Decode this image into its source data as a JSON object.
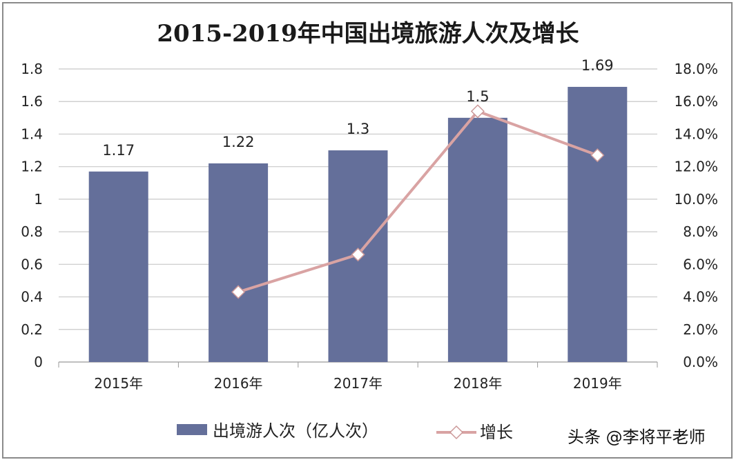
{
  "chart_data": {
    "type": "bar+line",
    "title": "2015-2019年中国出境旅游人次及增长",
    "categories": [
      "2015年",
      "2016年",
      "2017年",
      "2018年",
      "2019年"
    ],
    "series": [
      {
        "name": "出境游人次（亿人次）",
        "type": "bar",
        "axis": "left",
        "values": [
          1.17,
          1.22,
          1.3,
          1.5,
          1.69
        ],
        "data_labels": [
          "1.17",
          "1.22",
          "1.3",
          "1.5",
          "1.69"
        ],
        "color": "#646f9a"
      },
      {
        "name": "增长",
        "type": "line",
        "axis": "right",
        "values": [
          null,
          4.3,
          6.6,
          15.4,
          12.7
        ],
        "color": "#d9a3a3"
      }
    ],
    "left_axis": {
      "ylim": [
        0,
        1.8
      ],
      "ticks": [
        "0",
        "0.2",
        "0.4",
        "0.6",
        "0.8",
        "1",
        "1.2",
        "1.4",
        "1.6",
        "1.8"
      ]
    },
    "right_axis": {
      "ylim": [
        0,
        18
      ],
      "ticks": [
        "0.0%",
        "2.0%",
        "4.0%",
        "6.0%",
        "8.0%",
        "10.0%",
        "12.0%",
        "14.0%",
        "16.0%",
        "18.0%"
      ]
    },
    "grid": true,
    "legend": "bottom"
  },
  "watermark": "头条 @李将平老师"
}
